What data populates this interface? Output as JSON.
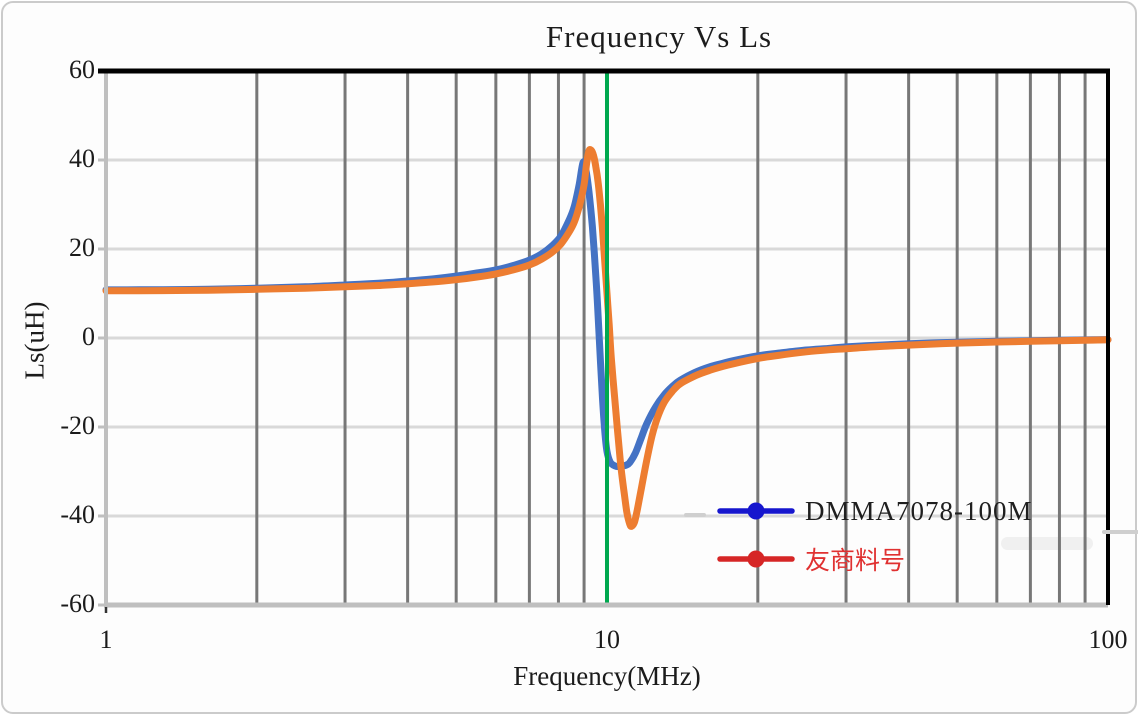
{
  "chart_data": {
    "type": "line",
    "title": "Frequency Vs Ls",
    "xlabel": "Frequency(MHz)",
    "ylabel": "Ls(uH)",
    "x_scale": "log",
    "xlim": [
      1,
      100
    ],
    "ylim": [
      -60,
      60
    ],
    "x_ticks": [
      {
        "value": 1,
        "label": "1"
      },
      {
        "value": 10,
        "label": "10"
      },
      {
        "value": 100,
        "label": "100"
      }
    ],
    "y_ticks": [
      {
        "value": 60,
        "label": "60"
      },
      {
        "value": 40,
        "label": "40"
      },
      {
        "value": 20,
        "label": "20"
      },
      {
        "value": 0,
        "label": "0"
      },
      {
        "value": -20,
        "label": "-20"
      },
      {
        "value": -40,
        "label": "-40"
      },
      {
        "value": -60,
        "label": "-60"
      }
    ],
    "x_gridlines": [
      2,
      3,
      4,
      5,
      6,
      7,
      8,
      9,
      20,
      30,
      40,
      50,
      60,
      70,
      80,
      90
    ],
    "y_gridlines": [
      40,
      20,
      0,
      -20,
      -40
    ],
    "grid": {
      "vertical_color": "#777777",
      "horizontal_color": "#d9d9d9",
      "border_dark": "#000000",
      "border_light": "#bfbfbf",
      "tick_color": "#bfbfbf"
    },
    "reference_line": {
      "x": 10,
      "color": "#00a84f"
    },
    "legend_position": "inside-bottom-right",
    "series": [
      {
        "name": "DMMA7078-100M",
        "color": "#4472c4",
        "legend_marker_color": "#1616ce",
        "label_color": "#1f1f1f",
        "points": [
          [
            1,
            10.8
          ],
          [
            1.3,
            10.85
          ],
          [
            1.6,
            10.95
          ],
          [
            2,
            11.2
          ],
          [
            2.5,
            11.5
          ],
          [
            3,
            11.9
          ],
          [
            3.5,
            12.3
          ],
          [
            4,
            12.8
          ],
          [
            4.5,
            13.3
          ],
          [
            5,
            13.9
          ],
          [
            5.5,
            14.6
          ],
          [
            6,
            15.3
          ],
          [
            6.5,
            16.3
          ],
          [
            7,
            17.5
          ],
          [
            7.4,
            18.9
          ],
          [
            7.8,
            20.9
          ],
          [
            8.1,
            23
          ],
          [
            8.4,
            26.5
          ],
          [
            8.6,
            29.5
          ],
          [
            8.8,
            34.5
          ],
          [
            8.95,
            39.3
          ],
          [
            9.05,
            38.5
          ],
          [
            9.2,
            33
          ],
          [
            9.35,
            25
          ],
          [
            9.5,
            14
          ],
          [
            9.6,
            5
          ],
          [
            9.7,
            -5
          ],
          [
            9.8,
            -14
          ],
          [
            9.9,
            -21
          ],
          [
            10,
            -25.5
          ],
          [
            10.15,
            -27.9
          ],
          [
            10.35,
            -28.7
          ],
          [
            10.6,
            -28.9
          ],
          [
            10.9,
            -28.6
          ],
          [
            11.1,
            -28
          ],
          [
            11.4,
            -25.8
          ],
          [
            11.7,
            -22.5
          ],
          [
            12,
            -19.3
          ],
          [
            12.5,
            -15.5
          ],
          [
            13,
            -12.8
          ],
          [
            13.5,
            -10.9
          ],
          [
            14,
            -9.5
          ],
          [
            15,
            -7.7
          ],
          [
            16,
            -6.5
          ],
          [
            17,
            -5.7
          ],
          [
            18,
            -5
          ],
          [
            20,
            -4
          ],
          [
            22,
            -3.4
          ],
          [
            25,
            -2.7
          ],
          [
            28,
            -2.3
          ],
          [
            30,
            -2
          ],
          [
            35,
            -1.6
          ],
          [
            40,
            -1.3
          ],
          [
            45,
            -1.1
          ],
          [
            50,
            -0.95
          ],
          [
            60,
            -0.75
          ],
          [
            70,
            -0.6
          ],
          [
            80,
            -0.5
          ],
          [
            90,
            -0.42
          ],
          [
            100,
            -0.35
          ]
        ]
      },
      {
        "name": "友商料号",
        "color": "#ed7d31",
        "legend_marker_color": "#d62626",
        "label_color": "#e03131",
        "points": [
          [
            1,
            10.6
          ],
          [
            1.3,
            10.65
          ],
          [
            1.6,
            10.75
          ],
          [
            2,
            10.95
          ],
          [
            2.5,
            11.2
          ],
          [
            3,
            11.5
          ],
          [
            3.5,
            11.8
          ],
          [
            4,
            12.2
          ],
          [
            4.5,
            12.6
          ],
          [
            5,
            13.1
          ],
          [
            5.5,
            13.7
          ],
          [
            6,
            14.4
          ],
          [
            6.5,
            15.3
          ],
          [
            7,
            16.4
          ],
          [
            7.4,
            17.7
          ],
          [
            7.8,
            19.4
          ],
          [
            8.1,
            21.2
          ],
          [
            8.4,
            23.8
          ],
          [
            8.6,
            26
          ],
          [
            8.8,
            29.5
          ],
          [
            9,
            34.5
          ],
          [
            9.1,
            39
          ],
          [
            9.2,
            42
          ],
          [
            9.3,
            42.2
          ],
          [
            9.4,
            41
          ],
          [
            9.5,
            38.5
          ],
          [
            9.6,
            35
          ],
          [
            9.7,
            30
          ],
          [
            9.8,
            24
          ],
          [
            9.9,
            17
          ],
          [
            10,
            10
          ],
          [
            10.1,
            3
          ],
          [
            10.2,
            -4.5
          ],
          [
            10.35,
            -13
          ],
          [
            10.5,
            -21
          ],
          [
            10.65,
            -28.5
          ],
          [
            10.8,
            -34
          ],
          [
            10.95,
            -39
          ],
          [
            11.1,
            -41.8
          ],
          [
            11.2,
            -42.3
          ],
          [
            11.35,
            -41.3
          ],
          [
            11.5,
            -38.5
          ],
          [
            11.7,
            -34
          ],
          [
            12,
            -27.5
          ],
          [
            12.3,
            -22
          ],
          [
            12.6,
            -18
          ],
          [
            13,
            -14.5
          ],
          [
            13.5,
            -12
          ],
          [
            14,
            -10.3
          ],
          [
            15,
            -8.5
          ],
          [
            16,
            -7.3
          ],
          [
            17,
            -6.4
          ],
          [
            18,
            -5.7
          ],
          [
            20,
            -4.6
          ],
          [
            22,
            -3.9
          ],
          [
            25,
            -3.1
          ],
          [
            28,
            -2.6
          ],
          [
            30,
            -2.4
          ],
          [
            35,
            -1.9
          ],
          [
            40,
            -1.6
          ],
          [
            45,
            -1.35
          ],
          [
            50,
            -1.15
          ],
          [
            60,
            -0.9
          ],
          [
            70,
            -0.75
          ],
          [
            80,
            -0.6
          ],
          [
            90,
            -0.5
          ],
          [
            100,
            -0.4
          ]
        ]
      }
    ]
  }
}
